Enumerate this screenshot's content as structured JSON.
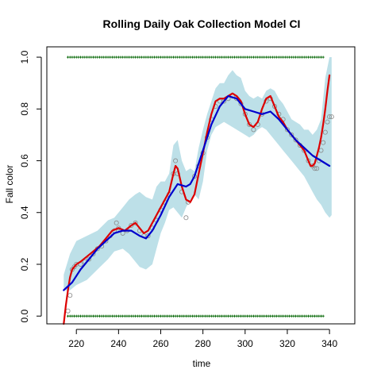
{
  "chart_data": {
    "type": "line",
    "title": "Rolling Daily Oak Collection Model CI",
    "xlabel": "time",
    "ylabel": "Fall color",
    "xlim": [
      206,
      352
    ],
    "ylim": [
      -0.03,
      1.04
    ],
    "xticks": [
      "220",
      "240",
      "260",
      "280",
      "300",
      "320",
      "340"
    ],
    "yticks": [
      "0.0",
      "0.2",
      "0.4",
      "0.6",
      "0.8",
      "1.0"
    ],
    "grid": false,
    "legend": "none",
    "series": [
      {
        "role": "ci_band",
        "color": "#bde0e8",
        "upper": [
          [
            214,
            0.16
          ],
          [
            217,
            0.24
          ],
          [
            220,
            0.29
          ],
          [
            225,
            0.31
          ],
          [
            230,
            0.33
          ],
          [
            235,
            0.37
          ],
          [
            238,
            0.38
          ],
          [
            242,
            0.42
          ],
          [
            245,
            0.45
          ],
          [
            248,
            0.47
          ],
          [
            250,
            0.48
          ],
          [
            253,
            0.46
          ],
          [
            256,
            0.45
          ],
          [
            258,
            0.5
          ],
          [
            260,
            0.52
          ],
          [
            262,
            0.52
          ],
          [
            264,
            0.55
          ],
          [
            266,
            0.66
          ],
          [
            268,
            0.68
          ],
          [
            270,
            0.6
          ],
          [
            272,
            0.56
          ],
          [
            274,
            0.57
          ],
          [
            276,
            0.56
          ],
          [
            278,
            0.65
          ],
          [
            280,
            0.72
          ],
          [
            282,
            0.78
          ],
          [
            284,
            0.83
          ],
          [
            286,
            0.88
          ],
          [
            288,
            0.9
          ],
          [
            290,
            0.9
          ],
          [
            292,
            0.93
          ],
          [
            294,
            0.95
          ],
          [
            296,
            0.93
          ],
          [
            298,
            0.92
          ],
          [
            300,
            0.87
          ],
          [
            302,
            0.85
          ],
          [
            304,
            0.84
          ],
          [
            306,
            0.85
          ],
          [
            308,
            0.84
          ],
          [
            310,
            0.87
          ],
          [
            312,
            0.88
          ],
          [
            314,
            0.87
          ],
          [
            316,
            0.84
          ],
          [
            318,
            0.82
          ],
          [
            320,
            0.79
          ],
          [
            322,
            0.76
          ],
          [
            324,
            0.75
          ],
          [
            326,
            0.74
          ],
          [
            328,
            0.72
          ],
          [
            330,
            0.72
          ],
          [
            332,
            0.7
          ],
          [
            334,
            0.72
          ],
          [
            336,
            0.76
          ],
          [
            338,
            0.92
          ],
          [
            340,
            1.0
          ],
          [
            341,
            1.0
          ]
        ],
        "lower": [
          [
            214,
            0.1
          ],
          [
            217,
            0.1
          ],
          [
            220,
            0.12
          ],
          [
            225,
            0.14
          ],
          [
            230,
            0.18
          ],
          [
            235,
            0.22
          ],
          [
            238,
            0.25
          ],
          [
            242,
            0.26
          ],
          [
            245,
            0.24
          ],
          [
            248,
            0.21
          ],
          [
            250,
            0.19
          ],
          [
            253,
            0.18
          ],
          [
            256,
            0.2
          ],
          [
            258,
            0.26
          ],
          [
            260,
            0.32
          ],
          [
            262,
            0.36
          ],
          [
            264,
            0.41
          ],
          [
            266,
            0.42
          ],
          [
            268,
            0.4
          ],
          [
            270,
            0.38
          ],
          [
            272,
            0.42
          ],
          [
            274,
            0.45
          ],
          [
            276,
            0.47
          ],
          [
            278,
            0.45
          ],
          [
            280,
            0.52
          ],
          [
            282,
            0.64
          ],
          [
            284,
            0.7
          ],
          [
            286,
            0.73
          ],
          [
            288,
            0.74
          ],
          [
            290,
            0.75
          ],
          [
            292,
            0.74
          ],
          [
            294,
            0.73
          ],
          [
            296,
            0.72
          ],
          [
            298,
            0.71
          ],
          [
            300,
            0.7
          ],
          [
            302,
            0.69
          ],
          [
            304,
            0.7
          ],
          [
            306,
            0.72
          ],
          [
            308,
            0.73
          ],
          [
            310,
            0.72
          ],
          [
            312,
            0.7
          ],
          [
            314,
            0.68
          ],
          [
            316,
            0.66
          ],
          [
            318,
            0.64
          ],
          [
            320,
            0.62
          ],
          [
            322,
            0.6
          ],
          [
            324,
            0.58
          ],
          [
            326,
            0.56
          ],
          [
            328,
            0.54
          ],
          [
            330,
            0.51
          ],
          [
            332,
            0.48
          ],
          [
            334,
            0.45
          ],
          [
            336,
            0.43
          ],
          [
            338,
            0.4
          ],
          [
            340,
            0.38
          ],
          [
            341,
            0.39
          ]
        ]
      },
      {
        "role": "red_fit",
        "color": "#dd0000",
        "points": [
          [
            214,
            -0.03
          ],
          [
            215,
            0.04
          ],
          [
            216,
            0.1
          ],
          [
            217,
            0.15
          ],
          [
            218,
            0.18
          ],
          [
            220,
            0.2
          ],
          [
            222,
            0.21
          ],
          [
            225,
            0.23
          ],
          [
            228,
            0.25
          ],
          [
            231,
            0.27
          ],
          [
            234,
            0.3
          ],
          [
            237,
            0.33
          ],
          [
            240,
            0.34
          ],
          [
            243,
            0.33
          ],
          [
            246,
            0.35
          ],
          [
            248,
            0.36
          ],
          [
            250,
            0.34
          ],
          [
            252,
            0.32
          ],
          [
            254,
            0.33
          ],
          [
            256,
            0.36
          ],
          [
            258,
            0.39
          ],
          [
            260,
            0.42
          ],
          [
            262,
            0.45
          ],
          [
            264,
            0.48
          ],
          [
            266,
            0.55
          ],
          [
            267,
            0.58
          ],
          [
            268,
            0.57
          ],
          [
            270,
            0.5
          ],
          [
            272,
            0.45
          ],
          [
            274,
            0.44
          ],
          [
            276,
            0.47
          ],
          [
            278,
            0.55
          ],
          [
            280,
            0.63
          ],
          [
            282,
            0.71
          ],
          [
            284,
            0.78
          ],
          [
            286,
            0.83
          ],
          [
            288,
            0.84
          ],
          [
            290,
            0.84
          ],
          [
            292,
            0.85
          ],
          [
            294,
            0.86
          ],
          [
            296,
            0.85
          ],
          [
            298,
            0.83
          ],
          [
            300,
            0.78
          ],
          [
            302,
            0.74
          ],
          [
            304,
            0.73
          ],
          [
            306,
            0.75
          ],
          [
            308,
            0.8
          ],
          [
            310,
            0.84
          ],
          [
            312,
            0.85
          ],
          [
            314,
            0.81
          ],
          [
            316,
            0.77
          ],
          [
            318,
            0.75
          ],
          [
            320,
            0.72
          ],
          [
            322,
            0.7
          ],
          [
            324,
            0.68
          ],
          [
            326,
            0.66
          ],
          [
            328,
            0.64
          ],
          [
            330,
            0.6
          ],
          [
            331,
            0.58
          ],
          [
            332,
            0.58
          ],
          [
            333,
            0.59
          ],
          [
            334,
            0.62
          ],
          [
            335,
            0.65
          ],
          [
            336,
            0.69
          ],
          [
            337,
            0.74
          ],
          [
            338,
            0.8
          ],
          [
            339,
            0.87
          ],
          [
            340,
            0.93
          ]
        ]
      },
      {
        "role": "blue_fit",
        "color": "#0000cc",
        "points": [
          [
            214,
            0.1
          ],
          [
            218,
            0.13
          ],
          [
            222,
            0.18
          ],
          [
            226,
            0.22
          ],
          [
            230,
            0.26
          ],
          [
            234,
            0.29
          ],
          [
            238,
            0.32
          ],
          [
            242,
            0.33
          ],
          [
            246,
            0.33
          ],
          [
            250,
            0.31
          ],
          [
            253,
            0.3
          ],
          [
            256,
            0.33
          ],
          [
            260,
            0.39
          ],
          [
            264,
            0.46
          ],
          [
            268,
            0.51
          ],
          [
            272,
            0.5
          ],
          [
            274,
            0.51
          ],
          [
            276,
            0.54
          ],
          [
            280,
            0.64
          ],
          [
            284,
            0.74
          ],
          [
            288,
            0.81
          ],
          [
            292,
            0.85
          ],
          [
            296,
            0.84
          ],
          [
            300,
            0.8
          ],
          [
            304,
            0.79
          ],
          [
            308,
            0.78
          ],
          [
            312,
            0.79
          ],
          [
            316,
            0.76
          ],
          [
            320,
            0.72
          ],
          [
            324,
            0.68
          ],
          [
            328,
            0.65
          ],
          [
            332,
            0.62
          ],
          [
            336,
            0.6
          ],
          [
            340,
            0.58
          ]
        ]
      },
      {
        "role": "observed_points",
        "color": "#888888",
        "points": [
          [
            216,
            0.02
          ],
          [
            217,
            0.08
          ],
          [
            218,
            0.18
          ],
          [
            219,
            0.19
          ],
          [
            220,
            0.2
          ],
          [
            222,
            0.2
          ],
          [
            224,
            0.21
          ],
          [
            226,
            0.22
          ],
          [
            228,
            0.24
          ],
          [
            230,
            0.26
          ],
          [
            232,
            0.27
          ],
          [
            234,
            0.29
          ],
          [
            236,
            0.31
          ],
          [
            238,
            0.33
          ],
          [
            239,
            0.36
          ],
          [
            240,
            0.34
          ],
          [
            242,
            0.32
          ],
          [
            244,
            0.33
          ],
          [
            246,
            0.35
          ],
          [
            248,
            0.36
          ],
          [
            250,
            0.33
          ],
          [
            252,
            0.31
          ],
          [
            254,
            0.31
          ],
          [
            256,
            0.34
          ],
          [
            258,
            0.37
          ],
          [
            260,
            0.41
          ],
          [
            262,
            0.44
          ],
          [
            264,
            0.47
          ],
          [
            266,
            0.55
          ],
          [
            267,
            0.6
          ],
          [
            268,
            0.55
          ],
          [
            270,
            0.48
          ],
          [
            272,
            0.38
          ],
          [
            273,
            0.44
          ],
          [
            276,
            0.54
          ],
          [
            278,
            0.58
          ],
          [
            280,
            0.63
          ],
          [
            282,
            0.69
          ],
          [
            284,
            0.76
          ],
          [
            286,
            0.81
          ],
          [
            288,
            0.83
          ],
          [
            290,
            0.83
          ],
          [
            292,
            0.84
          ],
          [
            294,
            0.85
          ],
          [
            296,
            0.84
          ],
          [
            298,
            0.82
          ],
          [
            300,
            0.78
          ],
          [
            302,
            0.74
          ],
          [
            304,
            0.72
          ],
          [
            306,
            0.74
          ],
          [
            308,
            0.78
          ],
          [
            310,
            0.83
          ],
          [
            312,
            0.84
          ],
          [
            314,
            0.81
          ],
          [
            316,
            0.78
          ],
          [
            318,
            0.76
          ],
          [
            320,
            0.72
          ],
          [
            322,
            0.7
          ],
          [
            324,
            0.68
          ],
          [
            326,
            0.66
          ],
          [
            328,
            0.64
          ],
          [
            330,
            0.6
          ],
          [
            332,
            0.58
          ],
          [
            333,
            0.57
          ],
          [
            334,
            0.57
          ],
          [
            335,
            0.6
          ],
          [
            336,
            0.64
          ],
          [
            337,
            0.67
          ],
          [
            338,
            0.71
          ],
          [
            339,
            0.75
          ],
          [
            340,
            0.77
          ],
          [
            341,
            0.77
          ]
        ]
      },
      {
        "role": "binary_observations_top",
        "color": "#006400",
        "y": 1.0,
        "x_from": 216,
        "x_to": 337,
        "step": 1
      },
      {
        "role": "binary_observations_bottom",
        "color": "#006400",
        "y": 0.0,
        "x_from": 216,
        "x_to": 337,
        "step": 1
      }
    ]
  }
}
